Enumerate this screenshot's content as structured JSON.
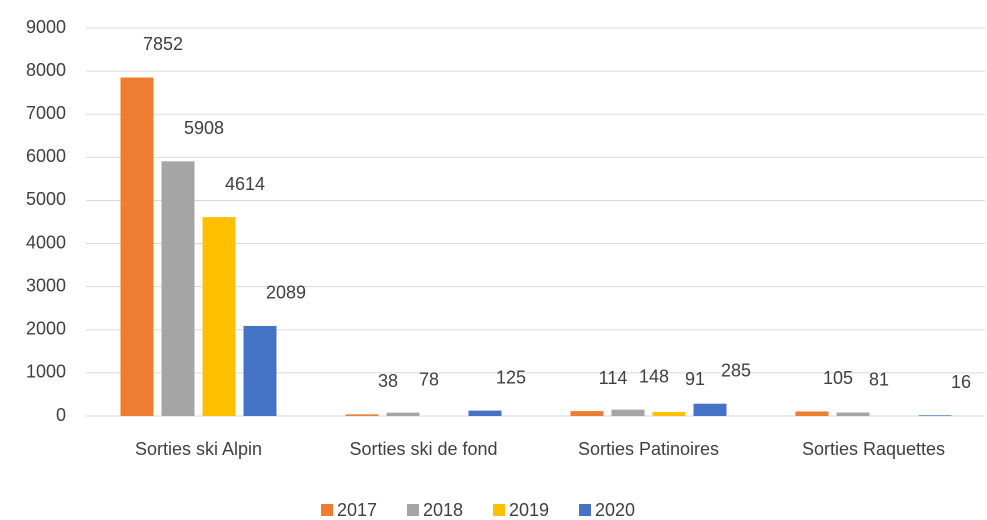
{
  "chart_data": {
    "type": "bar",
    "categories": [
      "Sorties ski Alpin",
      "Sorties ski de fond",
      "Sorties Patinoires",
      "Sorties Raquettes"
    ],
    "series": [
      {
        "name": "2017",
        "color": "#ed7d31",
        "values": [
          7852,
          38,
          114,
          105
        ]
      },
      {
        "name": "2018",
        "color": "#a5a5a5",
        "values": [
          5908,
          78,
          148,
          81
        ]
      },
      {
        "name": "2019",
        "color": "#ffc000",
        "values": [
          4614,
          null,
          91,
          null
        ]
      },
      {
        "name": "2020",
        "color": "#4472c4",
        "values": [
          2089,
          125,
          285,
          16
        ]
      }
    ],
    "ylim": [
      0,
      9000
    ],
    "yticks": [
      0,
      1000,
      2000,
      3000,
      4000,
      5000,
      6000,
      7000,
      8000,
      9000
    ],
    "grid": true,
    "legend": "bottom"
  }
}
